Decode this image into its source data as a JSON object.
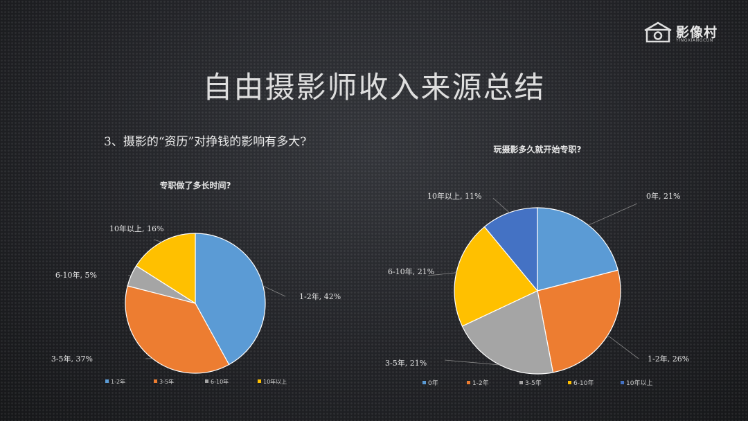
{
  "logo": {
    "text": "影像村",
    "sub": "YINGXIANGCUN"
  },
  "slide": {
    "title": "自由摄影师收入来源总结",
    "question": "3、摄影的“资历”对挣钱的影响有多大?"
  },
  "colors": {
    "c1": "#5b9bd5",
    "c2": "#ed7d31",
    "c3": "#a5a5a5",
    "c4": "#ffc000",
    "c5": "#4472c4"
  },
  "chart_data": [
    {
      "type": "pie",
      "title": "专职做了多长时间?",
      "categories": [
        "1-2年",
        "3-5年",
        "6-10年",
        "10年以上"
      ],
      "values": [
        42,
        37,
        5,
        16
      ],
      "data_labels": [
        "1-2年, 42%",
        "3-5年, 37%",
        "6-10年, 5%",
        "10年以上, 16%"
      ],
      "legend": "bottom"
    },
    {
      "type": "pie",
      "title": "玩摄影多久就开始专职?",
      "categories": [
        "0年",
        "1-2年",
        "3-5年",
        "6-10年",
        "10年以上"
      ],
      "values": [
        21,
        26,
        21,
        21,
        11
      ],
      "data_labels": [
        "0年, 21%",
        "1-2年, 26%",
        "3-5年, 21%",
        "6-10年, 21%",
        "10年以上, 11%"
      ],
      "legend": "bottom"
    }
  ]
}
